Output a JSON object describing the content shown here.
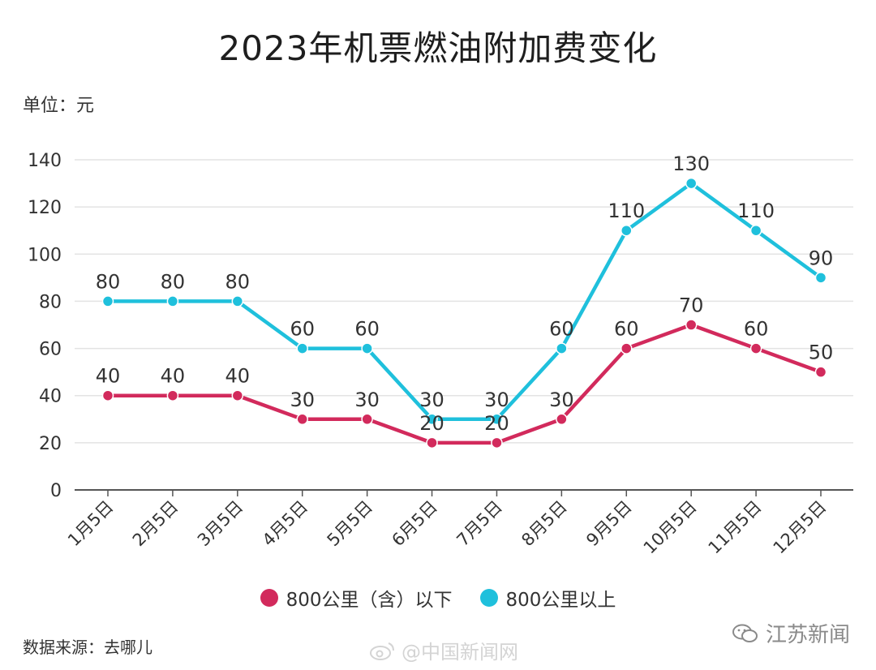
{
  "title": "2023年机票燃油附加费变化",
  "unit_label": "单位：元",
  "source_label": "数据来源：去哪儿",
  "watermarks": {
    "center": "@中国新闻网",
    "right": "江苏新闻"
  },
  "legend": [
    {
      "name": "800公里（含）以下",
      "color": "#d22a5c"
    },
    {
      "name": "800公里以上",
      "color": "#1fc0dc"
    }
  ],
  "chart_data": {
    "type": "line",
    "title": "2023年机票燃油附加费变化",
    "ylabel": "单位：元",
    "xlabel": "",
    "ylim": [
      0,
      140
    ],
    "yticks": [
      0,
      20,
      40,
      60,
      80,
      100,
      120,
      140
    ],
    "grid": true,
    "legend_position": "bottom",
    "categories": [
      "1月5日",
      "2月5日",
      "3月5日",
      "4月5日",
      "5月5日",
      "6月5日",
      "7月5日",
      "8月5日",
      "9月5日",
      "10月5日",
      "11月5日",
      "12月5日"
    ],
    "series": [
      {
        "name": "800公里（含）以下",
        "color": "#d22a5c",
        "values": [
          40,
          40,
          40,
          30,
          30,
          20,
          20,
          30,
          60,
          70,
          60,
          50
        ]
      },
      {
        "name": "800公里以上",
        "color": "#1fc0dc",
        "values": [
          80,
          80,
          80,
          60,
          60,
          30,
          30,
          60,
          110,
          130,
          110,
          90
        ]
      }
    ]
  }
}
